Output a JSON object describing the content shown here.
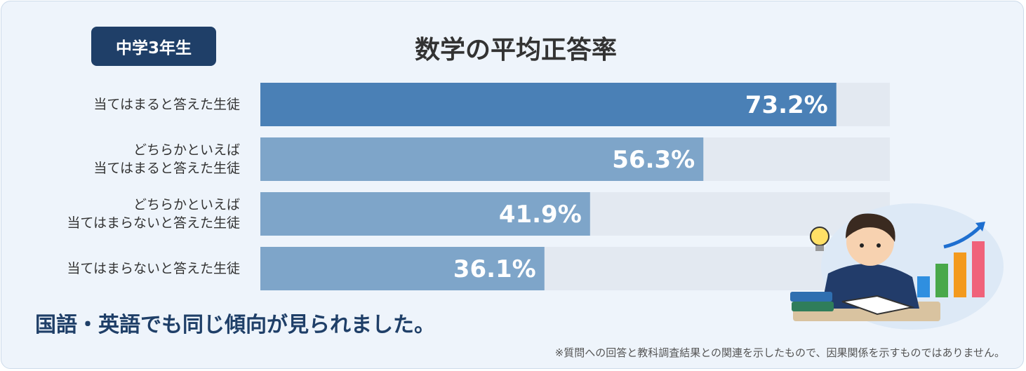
{
  "badge": "中学3年生",
  "chart_data": {
    "type": "bar",
    "orientation": "horizontal",
    "title": "数学の平均正答率",
    "categories": [
      "当てはまると答えた生徒",
      "どちらかといえば\n当てはまると答えた生徒",
      "どちらかといえば\n当てはまらないと答えた生徒",
      "当てはまらないと答えた生徒"
    ],
    "values": [
      73.2,
      56.3,
      41.9,
      36.1
    ],
    "value_labels": [
      "73.2%",
      "56.3%",
      "41.9%",
      "36.1%"
    ],
    "colors": [
      "#4a80b6",
      "#7ea5c9",
      "#7ea5c9",
      "#7ea5c9"
    ],
    "xlim": [
      0,
      80
    ]
  },
  "message": "国語・英語でも同じ傾向が見られました。",
  "note": "※質問への回答と教科調査結果との関連を示したもので、因果関係を示すものではありません。"
}
